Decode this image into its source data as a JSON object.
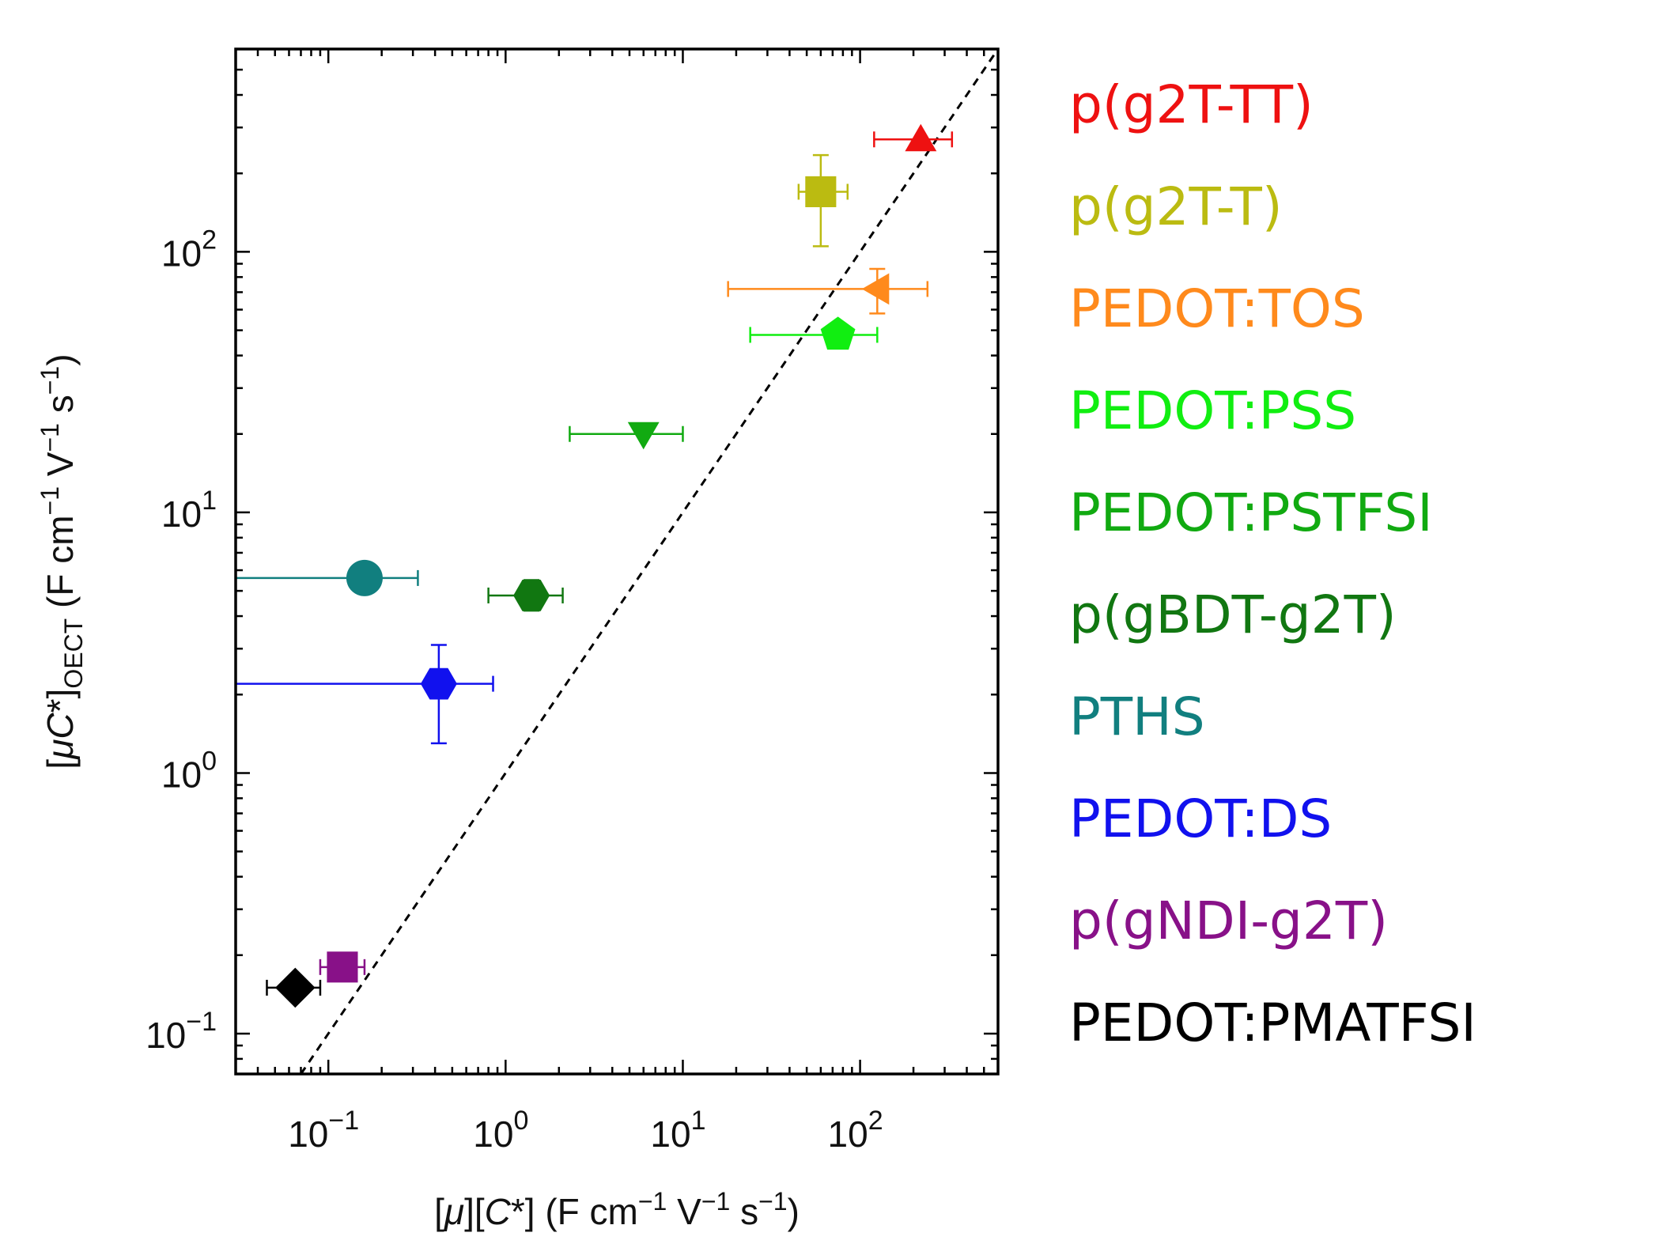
{
  "chart_data": {
    "type": "scatter",
    "xscale": "log",
    "yscale": "log",
    "xlim": [
      0.03,
      600
    ],
    "ylim": [
      0.07,
      600
    ],
    "grid": false,
    "legend_placement": "right",
    "xlabel": {
      "pre": "[",
      "mu": "μ",
      "mid": "][",
      "c": "C",
      "star": "*",
      "unit": "] (F cm",
      "e1": "−1",
      "v": " V",
      "e2": "−1",
      "s": " s",
      "e3": "−1",
      "close": ")"
    },
    "ylabel": {
      "pre": "[",
      "mu": "μ",
      "c": "C",
      "star": "*]",
      "sub": "OECT",
      "unit": " (F cm",
      "e1": "−1",
      "v": " V",
      "e2": "−1",
      "s": " s",
      "e3": "−1",
      "close": ")"
    },
    "xticks": [
      {
        "value": 0.1,
        "base": "10",
        "exp": "−1"
      },
      {
        "value": 1,
        "base": "10",
        "exp": "0"
      },
      {
        "value": 10,
        "base": "10",
        "exp": "1"
      },
      {
        "value": 100,
        "base": "10",
        "exp": "2"
      }
    ],
    "yticks": [
      {
        "value": 0.1,
        "base": "10",
        "exp": "−1"
      },
      {
        "value": 1,
        "base": "10",
        "exp": "0"
      },
      {
        "value": 10,
        "base": "10",
        "exp": "1"
      },
      {
        "value": 100,
        "base": "10",
        "exp": "2"
      }
    ],
    "reference_line": {
      "style": "dashed",
      "slope": 1
    },
    "series": [
      {
        "name": "p(g2T-TT)",
        "color": "#ee1111",
        "marker": "triangle-up",
        "x": 220,
        "y": 270,
        "xerr": [
          120,
          330
        ],
        "yerr": null
      },
      {
        "name": "p(g2T-T)",
        "color": "#bbbb11",
        "marker": "square",
        "x": 60,
        "y": 170,
        "xerr": [
          45,
          85
        ],
        "yerr": [
          105,
          235
        ]
      },
      {
        "name": "PEDOT:TOS",
        "color": "#ff8a1c",
        "marker": "triangle-left",
        "x": 125,
        "y": 72,
        "xerr": [
          18,
          240
        ],
        "yerr": [
          58,
          86
        ]
      },
      {
        "name": "PEDOT:PSS",
        "color": "#11ee11",
        "marker": "pentagon",
        "x": 75,
        "y": 48,
        "xerr": [
          24,
          125
        ],
        "yerr": null
      },
      {
        "name": "PEDOT:PSTFSI",
        "color": "#11aa11",
        "marker": "triangle-down",
        "x": 6,
        "y": 20,
        "xerr": [
          2.3,
          10
        ],
        "yerr": null
      },
      {
        "name": "p(gBDT-g2T)",
        "color": "#117711",
        "marker": "hexagon",
        "x": 1.4,
        "y": 4.8,
        "xerr": [
          0.8,
          2.1
        ],
        "yerr": [
          4.2,
          5.5
        ]
      },
      {
        "name": "PTHS",
        "color": "#117f7f",
        "marker": "circle",
        "x": 0.16,
        "y": 5.6,
        "xerr": [
          0.03,
          0.32
        ],
        "yerr": null
      },
      {
        "name": "PEDOT:DS",
        "color": "#1111ee",
        "marker": "hexagon",
        "x": 0.42,
        "y": 2.2,
        "xerr": [
          0.03,
          0.85
        ],
        "yerr": [
          1.3,
          3.1
        ]
      },
      {
        "name": "p(gNDI-g2T)",
        "color": "#881188",
        "marker": "square",
        "x": 0.12,
        "y": 0.18,
        "xerr": [
          0.09,
          0.16
        ],
        "yerr": null
      },
      {
        "name": "PEDOT:PMATFSI",
        "color": "#000000",
        "marker": "diamond",
        "x": 0.065,
        "y": 0.15,
        "xerr": [
          0.045,
          0.09
        ],
        "yerr": null
      }
    ]
  }
}
